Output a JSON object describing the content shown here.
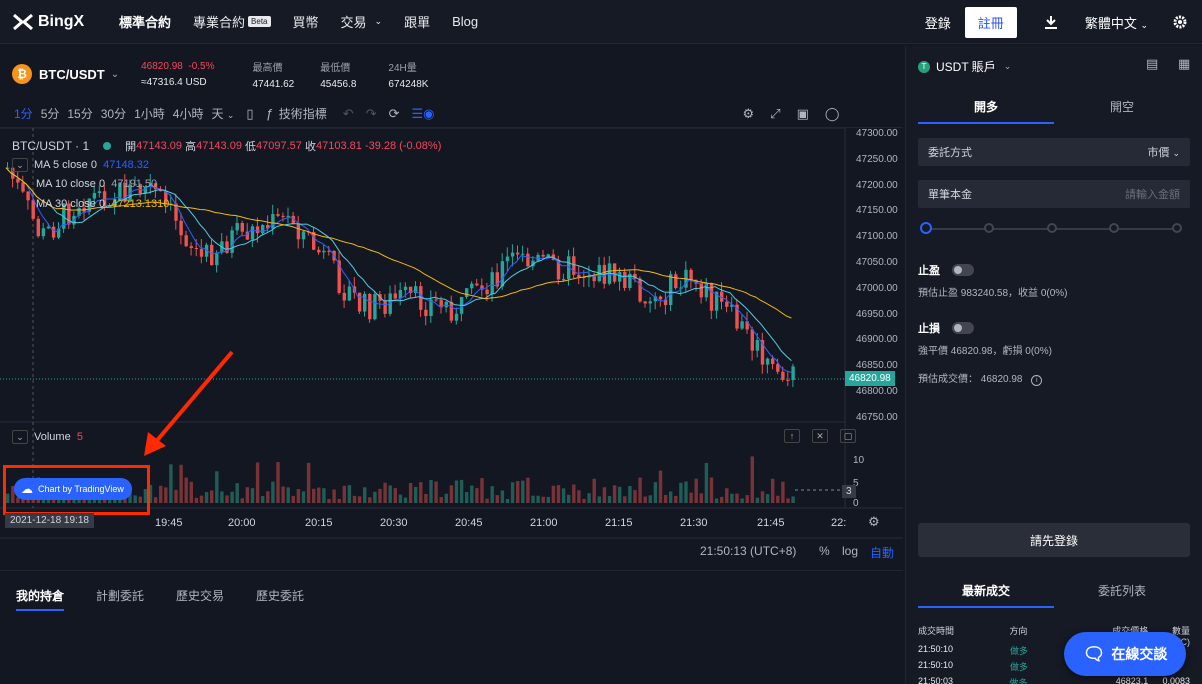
{
  "nav": {
    "logo": "BingX",
    "items": [
      "標準合約",
      "專業合約",
      "買幣",
      "交易",
      "跟單",
      "Blog"
    ],
    "beta": "Beta",
    "login": "登錄",
    "register": "註冊",
    "language": "繁體中文"
  },
  "ticker": {
    "pair": "BTC/USDT",
    "last_price": "46820.98",
    "change_pct": "-0.5%",
    "usd_price": "≈47316.4 USD",
    "high_label": "最高價",
    "high": "47441.62",
    "low_label": "最低價",
    "low": "45456.8",
    "vol_label": "24H量",
    "vol": "674248K"
  },
  "toolbar": {
    "timeframes": [
      "1分",
      "5分",
      "15分",
      "30分",
      "1小時",
      "4小時",
      "天"
    ],
    "indicators": "技術指標"
  },
  "chart": {
    "symbol_line": "BTC/USDT · 1",
    "ohlc": {
      "open_label": "開",
      "open": "47143.09",
      "high_label": "高",
      "high": "47143.09",
      "low_label": "低",
      "low": "47097.57",
      "close_label": "收",
      "close": "47103.81",
      "change": "-39.28 (-0.08%)"
    },
    "ma5": {
      "label": "MA 5 close 0",
      "value": "47148.32"
    },
    "ma10": {
      "label": "MA 10 close 0",
      "value": "47191.50"
    },
    "ma30": {
      "label": "MA 30 close 0",
      "value": "47213.1310"
    },
    "volume_label": "Volume",
    "volume_value": "5",
    "price_ticks": [
      "47300.00",
      "47250.00",
      "47200.00",
      "47150.00",
      "47100.00",
      "47050.00",
      "47000.00",
      "46950.00",
      "46900.00",
      "46850.00",
      "46800.00",
      "46750.00"
    ],
    "current_price": "46820.98",
    "vol_ticks": [
      "10",
      "5",
      "0"
    ],
    "vol_current": "3",
    "time_ticks": [
      "19:45",
      "20:00",
      "20:15",
      "20:30",
      "20:45",
      "21:00",
      "21:15",
      "21:30",
      "21:45",
      "22:"
    ],
    "crosshair_date": "2021-12-18   19:18",
    "tv_badge": "Chart by TradingView",
    "clock": "21:50:13 (UTC+8)",
    "pct": "%",
    "log": "log",
    "auto": "自動"
  },
  "bottom_tabs": [
    "我的持倉",
    "計劃委託",
    "歷史交易",
    "歷史委託"
  ],
  "panel": {
    "account": "USDT 賬戶",
    "tab_long": "開多",
    "tab_short": "開空",
    "order_type_label": "委託方式",
    "order_type_value": "市價",
    "amount_label": "單筆本金",
    "amount_placeholder": "請輸入金額",
    "take_profit": "止盈",
    "tp_info": "預估止盈 983240.58，收益 0(0%)",
    "stop_loss": "止損",
    "sl_info": "強平價 46820.98，虧損 0(0%)",
    "est_price": "預估成交價： 46820.98",
    "login_btn": "請先登錄",
    "tab_trades": "最新成交",
    "tab_orders": "委託列表",
    "hdr": [
      "成交時間",
      "方向",
      "成交價格",
      "數量(BTC)"
    ],
    "rows": [
      [
        "21:50:10",
        "做多",
        "",
        ""
      ],
      [
        "21:50:10",
        "做多",
        "",
        ""
      ],
      [
        "21:50:03",
        "做多",
        "46823.1",
        "0.0083"
      ]
    ]
  },
  "chat_label": "在線交談"
}
